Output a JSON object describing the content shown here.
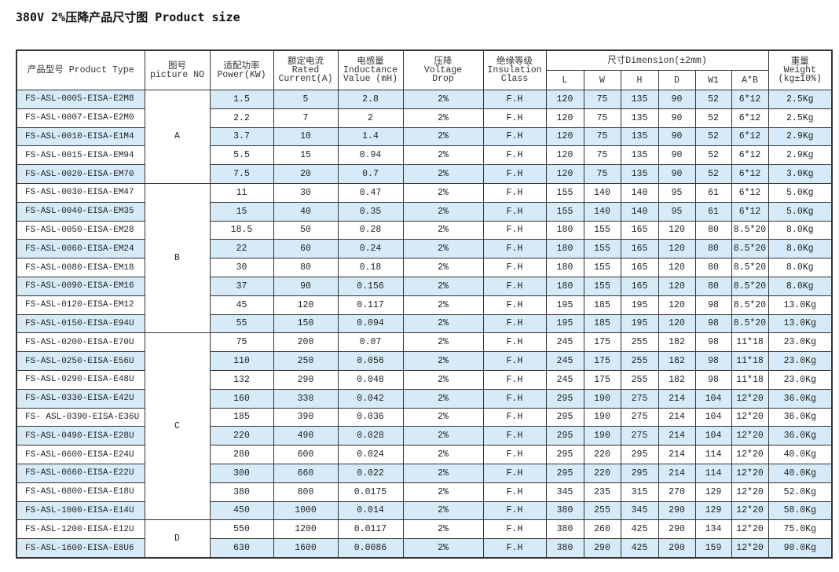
{
  "title": "380V 2%压降产品尺寸图 Product size",
  "colors": {
    "stripe": "#d6ebf7",
    "border": "#333333"
  },
  "headers": {
    "product_type": "产品型号 Product Type",
    "picture_cn": "图号",
    "picture_en": "picture NO",
    "power_cn": "适配功率",
    "power_en": "Power(KW)",
    "current_cn": "额定电流",
    "current_en1": "Rated",
    "current_en2": "Current(A)",
    "inductance_cn": "电感量",
    "inductance_en1": "Inductance",
    "inductance_en2": "Value (mH)",
    "drop_cn": "压降",
    "drop_en1": "Voltage",
    "drop_en2": "Drop",
    "insulation_cn": "绝缘等级",
    "insulation_en1": "Insulation",
    "insulation_en2": "Class",
    "dimension": "尺寸Dimension(±2mm)",
    "dims": [
      "L",
      "W",
      "H",
      "D",
      "W1",
      "A*B"
    ],
    "weight_cn": "重量",
    "weight_en1": "Weight",
    "weight_en2": "(kg±10%)"
  },
  "groups": [
    {
      "picture": "A",
      "count": 5
    },
    {
      "picture": "B",
      "count": 8
    },
    {
      "picture": "C",
      "count": 10
    },
    {
      "picture": "D",
      "count": 2
    }
  ],
  "rows": [
    [
      "FS-ASL-0005-EISA-E2M8",
      "1.5",
      "5",
      "2.8",
      "2%",
      "F.H",
      "120",
      "75",
      "135",
      "90",
      "52",
      "6*12",
      "2.5Kg"
    ],
    [
      "FS-ASL-0007-EISA-E2M0",
      "2.2",
      "7",
      "2",
      "2%",
      "F.H",
      "120",
      "75",
      "135",
      "90",
      "52",
      "6*12",
      "2.5Kg"
    ],
    [
      "FS-ASL-0010-EISA-E1M4",
      "3.7",
      "10",
      "1.4",
      "2%",
      "F.H",
      "120",
      "75",
      "135",
      "90",
      "52",
      "6*12",
      "2.9Kg"
    ],
    [
      "FS-ASL-0015-EISA-EM94",
      "5.5",
      "15",
      "0.94",
      "2%",
      "F.H",
      "120",
      "75",
      "135",
      "90",
      "52",
      "6*12",
      "2.9Kg"
    ],
    [
      "FS-ASL-0020-EISA-EM70",
      "7.5",
      "20",
      "0.7",
      "2%",
      "F.H",
      "120",
      "75",
      "135",
      "90",
      "52",
      "6*12",
      "3.0Kg"
    ],
    [
      "FS-ASL-0030-EISA-EM47",
      "11",
      "30",
      "0.47",
      "2%",
      "F.H",
      "155",
      "140",
      "140",
      "95",
      "61",
      "6*12",
      "5.0Kg"
    ],
    [
      "FS-ASL-0040-EISA-EM35",
      "15",
      "40",
      "0.35",
      "2%",
      "F.H",
      "155",
      "140",
      "140",
      "95",
      "61",
      "6*12",
      "5.0Kg"
    ],
    [
      "FS-ASL-0050-EISA-EM28",
      "18.5",
      "50",
      "0.28",
      "2%",
      "F.H",
      "180",
      "155",
      "165",
      "120",
      "80",
      "8.5*20",
      "8.0Kg"
    ],
    [
      "FS-ASL-0060-EISA-EM24",
      "22",
      "60",
      "0.24",
      "2%",
      "F.H",
      "180",
      "155",
      "165",
      "120",
      "80",
      "8.5*20",
      "8.0Kg"
    ],
    [
      "FS-ASL-0080-EISA-EM18",
      "30",
      "80",
      "0.18",
      "2%",
      "F.H",
      "180",
      "155",
      "165",
      "120",
      "80",
      "8.5*20",
      "8.0Kg"
    ],
    [
      "FS-ASL-0090-EISA-EM16",
      "37",
      "90",
      "0.156",
      "2%",
      "F.H",
      "180",
      "155",
      "165",
      "120",
      "80",
      "8.5*20",
      "8.0Kg"
    ],
    [
      "FS-ASL-0120-EISA-EM12",
      "45",
      "120",
      "0.117",
      "2%",
      "F.H",
      "195",
      "185",
      "195",
      "120",
      "98",
      "8.5*20",
      "13.0Kg"
    ],
    [
      "FS-ASL-0150-EISA-E94U",
      "55",
      "150",
      "0.094",
      "2%",
      "F.H",
      "195",
      "185",
      "195",
      "120",
      "98",
      "8.5*20",
      "13.0Kg"
    ],
    [
      "FS-ASL-0200-EISA-E70U",
      "75",
      "200",
      "0.07",
      "2%",
      "F.H",
      "245",
      "175",
      "255",
      "182",
      "98",
      "11*18",
      "23.0Kg"
    ],
    [
      "FS-ASL-0250-EISA-E56U",
      "110",
      "250",
      "0.056",
      "2%",
      "F.H",
      "245",
      "175",
      "255",
      "182",
      "98",
      "11*18",
      "23.0Kg"
    ],
    [
      "FS-ASL-0290-EISA-E48U",
      "132",
      "290",
      "0.048",
      "2%",
      "F.H",
      "245",
      "175",
      "255",
      "182",
      "98",
      "11*18",
      "23.0Kg"
    ],
    [
      "FS-ASL-0330-EISA-E42U",
      "160",
      "330",
      "0.042",
      "2%",
      "F.H",
      "295",
      "190",
      "275",
      "214",
      "104",
      "12*20",
      "36.0Kg"
    ],
    [
      "FS- ASL-0390-EISA-E36U",
      "185",
      "390",
      "0.036",
      "2%",
      "F.H",
      "295",
      "190",
      "275",
      "214",
      "104",
      "12*20",
      "36.0Kg"
    ],
    [
      "FS-ASL-0490-EISA-E28U",
      "220",
      "490",
      "0.028",
      "2%",
      "F.H",
      "295",
      "190",
      "275",
      "214",
      "104",
      "12*20",
      "36.0Kg"
    ],
    [
      "FS-ASL-0600-EISA-E24U",
      "280",
      "600",
      "0.024",
      "2%",
      "F.H",
      "295",
      "220",
      "295",
      "214",
      "114",
      "12*20",
      "40.0Kg"
    ],
    [
      "FS-ASL-0660-EISA-E22U",
      "300",
      "660",
      "0.022",
      "2%",
      "F.H",
      "295",
      "220",
      "295",
      "214",
      "114",
      "12*20",
      "40.0Kg"
    ],
    [
      "FS-ASL-0800-EISA-E18U",
      "380",
      "800",
      "0.0175",
      "2%",
      "F.H",
      "345",
      "235",
      "315",
      "270",
      "129",
      "12*20",
      "52.0Kg"
    ],
    [
      "FS-ASL-1000-EISA-E14U",
      "450",
      "1000",
      "0.014",
      "2%",
      "F.H",
      "380",
      "255",
      "345",
      "290",
      "129",
      "12*20",
      "58.0Kg"
    ],
    [
      "FS-ASL-1200-EISA-E12U",
      "550",
      "1200",
      "0.0117",
      "2%",
      "F.H",
      "380",
      "260",
      "425",
      "290",
      "134",
      "12*20",
      "75.0Kg"
    ],
    [
      "FS-ASL-1600-EISA-E8U6",
      "630",
      "1600",
      "0.0086",
      "2%",
      "F.H",
      "380",
      "290",
      "425",
      "290",
      "159",
      "12*20",
      "90.0Kg"
    ]
  ]
}
